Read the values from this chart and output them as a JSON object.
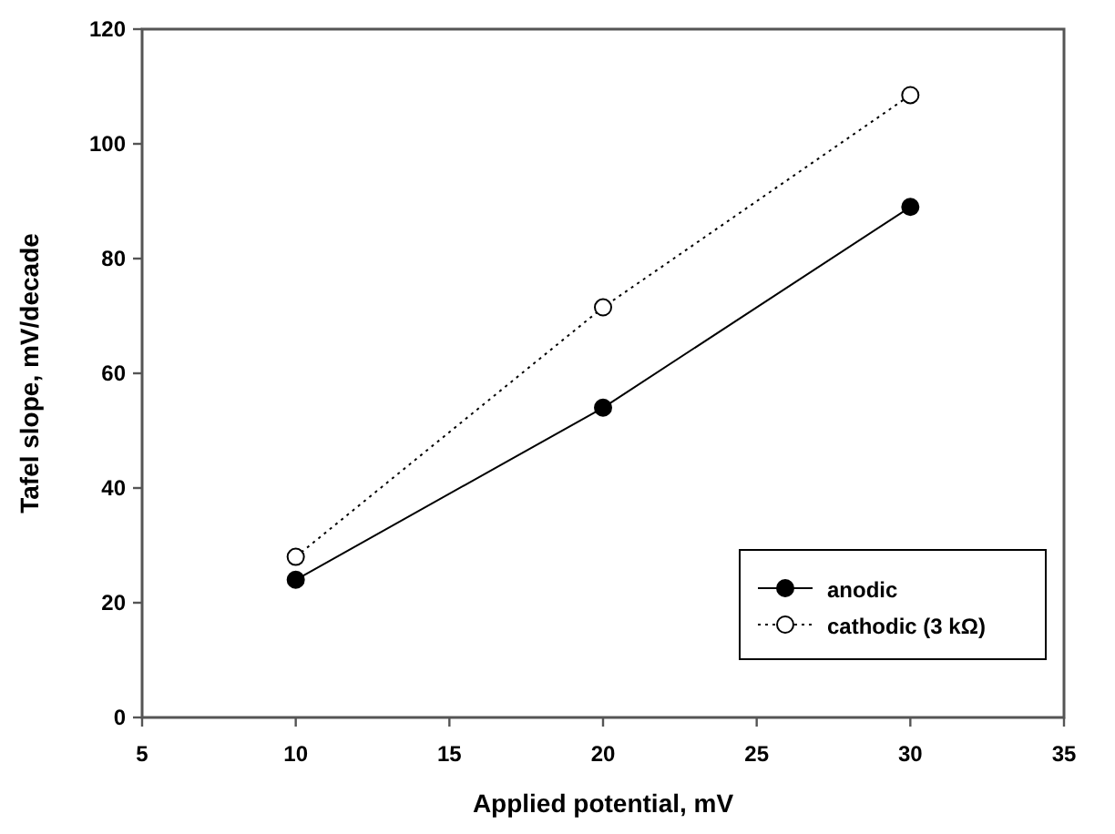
{
  "chart_data": {
    "type": "line",
    "xlabel": "Applied potential, mV",
    "ylabel": "Tafel slope, mV/decade",
    "x": [
      10,
      20,
      30
    ],
    "series": [
      {
        "name": "anodic",
        "color": "#000000",
        "values": [
          24,
          54,
          89
        ],
        "marker": "circle",
        "line_style": "solid"
      },
      {
        "name": "cathodic (3 kΩ)",
        "color": "#000000",
        "values": [
          28,
          71.5,
          108.5
        ],
        "marker": "circle",
        "line_style": "dotted"
      }
    ],
    "xlim": [
      5,
      35
    ],
    "xticks": [
      5,
      10,
      15,
      20,
      25,
      30,
      35
    ],
    "ylim": [
      0,
      120
    ],
    "yticks": [
      0,
      20,
      40,
      60,
      80,
      100,
      120
    ],
    "grid": false,
    "legend": "bottom right"
  }
}
